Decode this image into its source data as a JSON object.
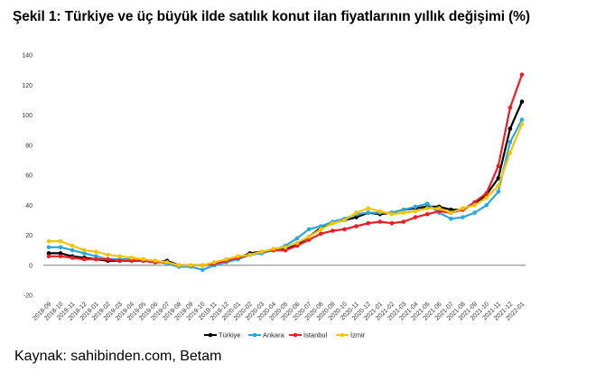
{
  "title": "Şekil 1: Türkiye ve üç büyük ilde satılık konut ilan fiyatlarının yıllık değişimi (%)",
  "source": "Kaynak: sahibinden.com, Betam",
  "chart_data": {
    "type": "line",
    "title": "Şekil 1: Türkiye ve üç büyük ilde satılık konut ilan fiyatlarının yıllık değişimi (%)",
    "xlabel": "",
    "ylabel": "",
    "ylim": [
      -20,
      140
    ],
    "yticks": [
      -20,
      0,
      20,
      40,
      60,
      80,
      100,
      120,
      140
    ],
    "grid": false,
    "legend": "bottom",
    "categories": [
      "2018-09",
      "2018-10",
      "2018-11",
      "2018-12",
      "2019-01",
      "2019-02",
      "2019-03",
      "2019-04",
      "2019-05",
      "2019-06",
      "2019-07",
      "2019-08",
      "2019-09",
      "2019-10",
      "2019-11",
      "2019-12",
      "2020-01",
      "2020-02",
      "2020-03",
      "2020-04",
      "2020-05",
      "2020-06",
      "2020-07",
      "2020-08",
      "2020-09",
      "2020-10",
      "2020-11",
      "2020-12",
      "2021-01",
      "2021-02",
      "2021-03",
      "2021-04",
      "2021-05",
      "2021-06",
      "2021-07",
      "2021-08",
      "2021-09",
      "2021-10",
      "2021-11",
      "2021-12",
      "2022-01"
    ],
    "series": [
      {
        "name": "Türkiye",
        "color": "#000000",
        "values": [
          8,
          8,
          6,
          5,
          4,
          3,
          3,
          3,
          3,
          2,
          3,
          0,
          0,
          0,
          1,
          3,
          5,
          8,
          9,
          10,
          11,
          14,
          19,
          25,
          28,
          30,
          32,
          35,
          34,
          35,
          37,
          38,
          39,
          39,
          37,
          37,
          41,
          47,
          58,
          91,
          109
        ]
      },
      {
        "name": "Ankara",
        "color": "#29a8e0",
        "values": [
          12,
          12,
          10,
          8,
          6,
          4,
          4,
          4,
          3,
          3,
          1,
          -1,
          -1,
          -3,
          0,
          2,
          4,
          7,
          8,
          10,
          13,
          18,
          24,
          26,
          29,
          31,
          34,
          35,
          35,
          35,
          37,
          39,
          41,
          35,
          31,
          32,
          35,
          40,
          49,
          82,
          97
        ]
      },
      {
        "name": "İstanbul",
        "color": "#ee1c24",
        "values": [
          6,
          6,
          5,
          4,
          4,
          4,
          3,
          3,
          3,
          2,
          2,
          0,
          0,
          0,
          1,
          3,
          5,
          7,
          9,
          10,
          10,
          13,
          17,
          21,
          23,
          24,
          26,
          28,
          29,
          28,
          29,
          32,
          34,
          36,
          35,
          37,
          42,
          48,
          66,
          105,
          127
        ]
      },
      {
        "name": "İzmir",
        "color": "#f5c400",
        "values": [
          16,
          16,
          13,
          10,
          9,
          7,
          6,
          5,
          4,
          3,
          2,
          0,
          0,
          0,
          2,
          4,
          6,
          7,
          9,
          11,
          12,
          15,
          19,
          24,
          28,
          30,
          35,
          38,
          36,
          34,
          35,
          36,
          38,
          38,
          35,
          38,
          40,
          45,
          53,
          75,
          94
        ]
      }
    ]
  }
}
